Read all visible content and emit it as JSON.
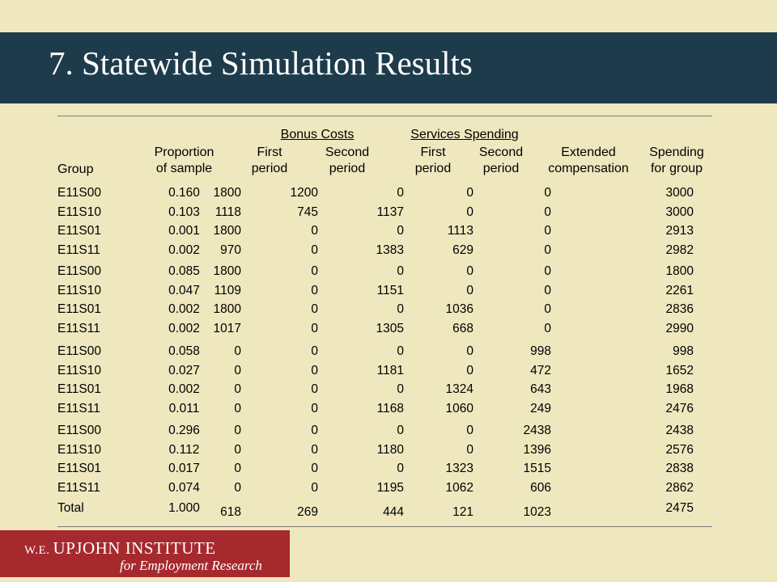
{
  "title": "7.  Statewide Simulation Results",
  "table": {
    "headers": {
      "group": "Group",
      "proportion": [
        "Proportion",
        "of sample"
      ],
      "bonus_costs": "Bonus Costs",
      "services_spending": "Services Spending",
      "bonus_first": [
        "First",
        "period"
      ],
      "bonus_second": [
        "Second",
        "period"
      ],
      "serv_first": [
        "First",
        "period"
      ],
      "serv_second": [
        "Second",
        "period"
      ],
      "extended": [
        "Extended",
        "compensation"
      ],
      "spending": [
        "Spending",
        "for group"
      ]
    },
    "blocks": [
      [
        [
          "E11S00",
          "0.160",
          "1800",
          "1200",
          "0",
          "0",
          "0",
          "3000"
        ],
        [
          "E11S10",
          "0.103",
          "1118",
          "745",
          "1137",
          "0",
          "0",
          "3000"
        ],
        [
          "E11S01",
          "0.001",
          "1800",
          "0",
          "0",
          "1113",
          "0",
          "2913"
        ],
        [
          "E11S11",
          "0.002",
          "970",
          "0",
          "1383",
          "629",
          "0",
          "2982"
        ]
      ],
      [
        [
          "E11S00",
          "0.085",
          "1800",
          "0",
          "0",
          "0",
          "0",
          "1800"
        ],
        [
          "E11S10",
          "0.047",
          "1109",
          "0",
          "1151",
          "0",
          "0",
          "2261"
        ],
        [
          "E11S01",
          "0.002",
          "1800",
          "0",
          "0",
          "1036",
          "0",
          "2836"
        ],
        [
          "E11S11",
          "0.002",
          "1017",
          "0",
          "1305",
          "668",
          "0",
          "2990"
        ]
      ],
      [
        [
          "E11S00",
          "0.058",
          "0",
          "0",
          "0",
          "0",
          "998",
          "998"
        ],
        [
          "E11S10",
          "0.027",
          "0",
          "0",
          "1181",
          "0",
          "472",
          "1652"
        ],
        [
          "E11S01",
          "0.002",
          "0",
          "0",
          "0",
          "1324",
          "643",
          "1968"
        ],
        [
          "E11S11",
          "0.011",
          "0",
          "0",
          "1168",
          "1060",
          "249",
          "2476"
        ]
      ],
      [
        [
          "E11S00",
          "0.296",
          "0",
          "0",
          "0",
          "0",
          "2438",
          "2438"
        ],
        [
          "E11S10",
          "0.112",
          "0",
          "0",
          "1180",
          "0",
          "1396",
          "2576"
        ],
        [
          "E11S01",
          "0.017",
          "0",
          "0",
          "0",
          "1323",
          "1515",
          "2838"
        ],
        [
          "E11S11",
          "0.074",
          "0",
          "0",
          "1195",
          "1062",
          "606",
          "2862"
        ]
      ]
    ],
    "total": [
      "Total",
      "1.000",
      "618",
      "269",
      "444",
      "121",
      "1023",
      "2475"
    ]
  },
  "logo": {
    "prefix": "W.E.",
    "name": "UPJOHN INSTITUTE",
    "tagline": "for Employment Research"
  }
}
